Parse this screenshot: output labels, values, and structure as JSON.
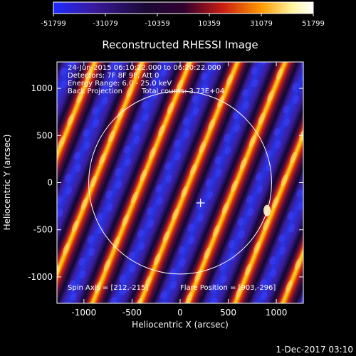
{
  "colorbar": {
    "ticks": [
      "-51799",
      "-31079",
      "-10359",
      "10359",
      "31079",
      "51799"
    ],
    "tick_values": [
      -51799,
      -31079,
      -10359,
      10359,
      31079,
      51799
    ],
    "colors": [
      "#1c2cff",
      "#3a1aa0",
      "#1a0a35",
      "#300030",
      "#c81c12",
      "#ff9a00",
      "#fff6a0",
      "#ffffff"
    ]
  },
  "plot": {
    "title": "Reconstructed RHESSI Image",
    "xlabel": "Heliocentric X (arcsec)",
    "ylabel": "Heliocentric Y (arcsec)",
    "xticks": [
      "-1000",
      "-500",
      "0",
      "500",
      "1000"
    ],
    "yticks": [
      "1000",
      "500",
      "0",
      "-500",
      "-1000"
    ],
    "xtick_values": [
      -1000,
      -500,
      0,
      500,
      1000
    ],
    "ytick_values": [
      1000,
      500,
      0,
      -500,
      -1000
    ],
    "xlim": [
      -1280,
      1280
    ],
    "ylim": [
      -1280,
      1280
    ]
  },
  "info": {
    "time_range": "24-Jun-2015 06:10:22.000 to 06:20:22.000",
    "detectors": "Detectors: 7F 8F 9F, Att 0",
    "energy": "Energy Range: 6.0 - 25.0 keV",
    "method": "Back Projection",
    "counts": "Total counts: 3.73E+04",
    "spin_axis": "Spin Axis = [212,-215]",
    "flare_position": "Flare Position = [903,-296]"
  },
  "markers": {
    "spin_axis": [
      212,
      -215
    ],
    "flare_position": [
      903,
      -296
    ],
    "solar_radius_arcsec": 950
  },
  "footer": {
    "date": "1-Dec-2017 03:10"
  }
}
